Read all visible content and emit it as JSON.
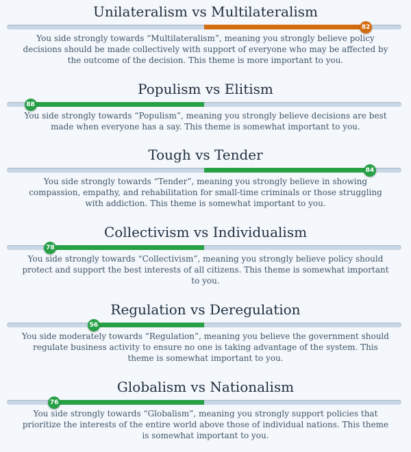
{
  "themes": [
    {
      "title": "Unilateralism vs Multilateralism",
      "score": 82,
      "side": "right",
      "fill_fraction": 0.82,
      "color": "#d46b0f",
      "description": "You side strongly towards “Multilateralism”, meaning you strongly believe policy decisions should be made collectively with support of everyone who may be affected by the outcome of the decision. This theme is more important to you."
    },
    {
      "title": "Populism vs Elitism",
      "score": 88,
      "side": "left",
      "fill_fraction": 0.88,
      "color": "#27a046",
      "description": "You side strongly towards “Populism”, meaning you strongly believe decisions are best made when everyone has a say. This theme is somewhat important to you."
    },
    {
      "title": "Tough vs Tender",
      "score": 84,
      "side": "right",
      "fill_fraction": 0.84,
      "color": "#27a046",
      "description": "You side strongly towards “Tender”, meaning you strongly believe in showing compassion, empathy, and rehabilitation for small-time criminals or those struggling with addiction. This theme is somewhat important to you."
    },
    {
      "title": "Collectivism vs Individualism",
      "score": 78,
      "side": "left",
      "fill_fraction": 0.78,
      "color": "#27a046",
      "description": "You side strongly towards “Collectivism”, meaning you strongly believe policy should protect and support the best interests of all citizens. This theme is somewhat important to you."
    },
    {
      "title": "Regulation vs Deregulation",
      "score": 56,
      "side": "left",
      "fill_fraction": 0.56,
      "color": "#27a046",
      "description": "You side moderately towards “Regulation”, meaning you believe the government should regulate business activity to ensure no one is taking advantage of the system. This theme is somewhat important to you."
    },
    {
      "title": "Globalism vs Nationalism",
      "score": 76,
      "side": "left",
      "fill_fraction": 0.76,
      "color": "#27a046",
      "description": "You side strongly towards “Globalism”, meaning you strongly support policies that prioritize the interests of the entire world above those of individual nations. This theme is somewhat important to you."
    }
  ]
}
